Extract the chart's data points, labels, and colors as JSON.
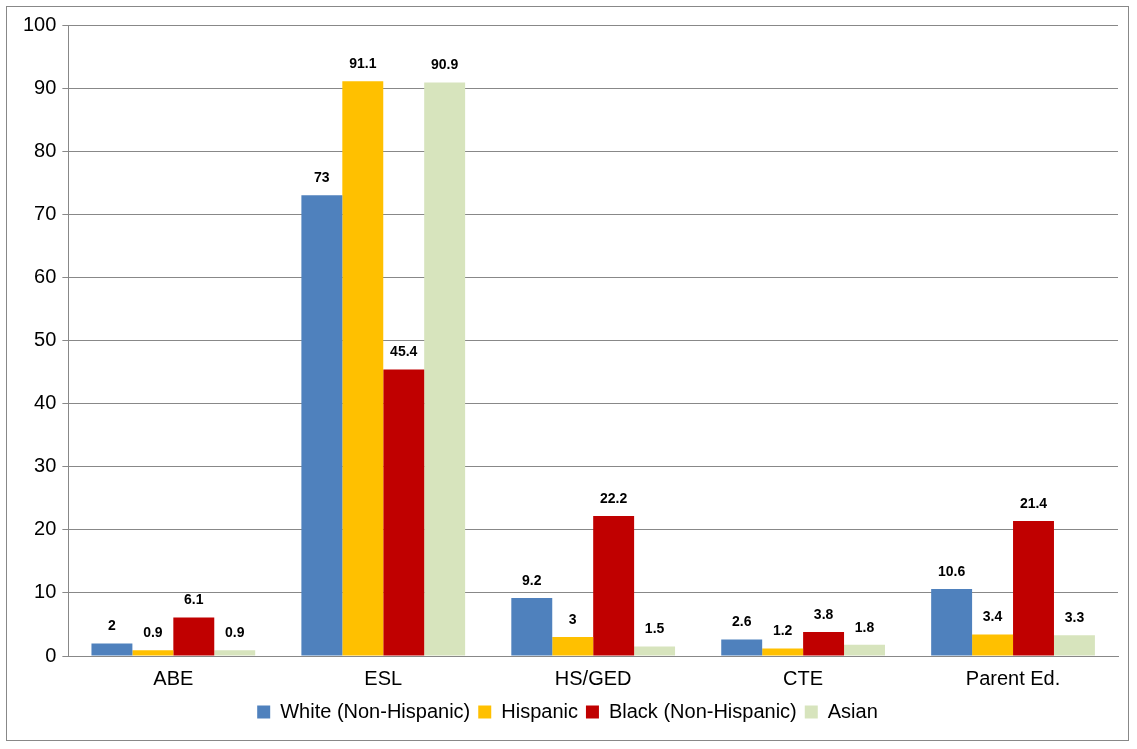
{
  "chart_data": {
    "type": "bar",
    "categories": [
      "ABE",
      "ESL",
      "HS/GED",
      "CTE",
      "Parent Ed."
    ],
    "series": [
      {
        "name": "White (Non-Hispanic)",
        "color": "#4f81bd",
        "values": [
          2,
          73,
          9.2,
          2.6,
          10.6
        ]
      },
      {
        "name": "Hispanic",
        "color": "#ffc000",
        "values": [
          0.9,
          91.1,
          3,
          1.2,
          3.4
        ]
      },
      {
        "name": "Black (Non-Hispanic)",
        "color": "#c00000",
        "values": [
          6.1,
          45.4,
          22.2,
          3.8,
          21.4
        ]
      },
      {
        "name": "Asian",
        "color": "#d7e4bd",
        "values": [
          0.9,
          90.9,
          1.5,
          1.8,
          3.3
        ]
      }
    ],
    "ylim": [
      0,
      100
    ],
    "yticks": [
      0,
      10,
      20,
      30,
      40,
      50,
      60,
      70,
      80,
      90,
      100
    ],
    "grid": "y",
    "legend": "bottom",
    "data_labels": true
  }
}
